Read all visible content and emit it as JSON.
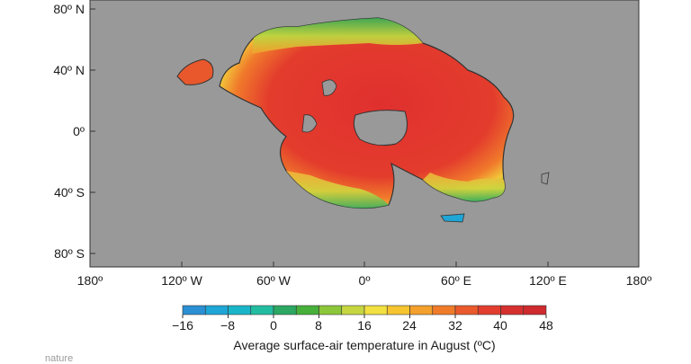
{
  "map": {
    "background_color": "#999999",
    "y_ticks": [
      "80º N",
      "40º N",
      "0º",
      "40º S",
      "80º S"
    ],
    "x_ticks": [
      "180º",
      "120º W",
      "60º W",
      "0º",
      "60º E",
      "120º E",
      "180º"
    ]
  },
  "colorbar": {
    "label": "Average surface-air temperature in August (ºC)",
    "tick_labels": [
      "−16",
      "−8",
      "0",
      "8",
      "16",
      "24",
      "32",
      "40",
      "48"
    ],
    "min": -16,
    "max": 48,
    "colors": [
      "#2b8fd4",
      "#1ea6d6",
      "#19b6c9",
      "#22bda1",
      "#2ca862",
      "#46b03a",
      "#8cc63a",
      "#c6d640",
      "#f2e040",
      "#f6c530",
      "#f4a02c",
      "#f07c2a",
      "#ea5a2c",
      "#e23d2e",
      "#d6302f",
      "#cf2a2e"
    ]
  },
  "credit": "nature"
}
